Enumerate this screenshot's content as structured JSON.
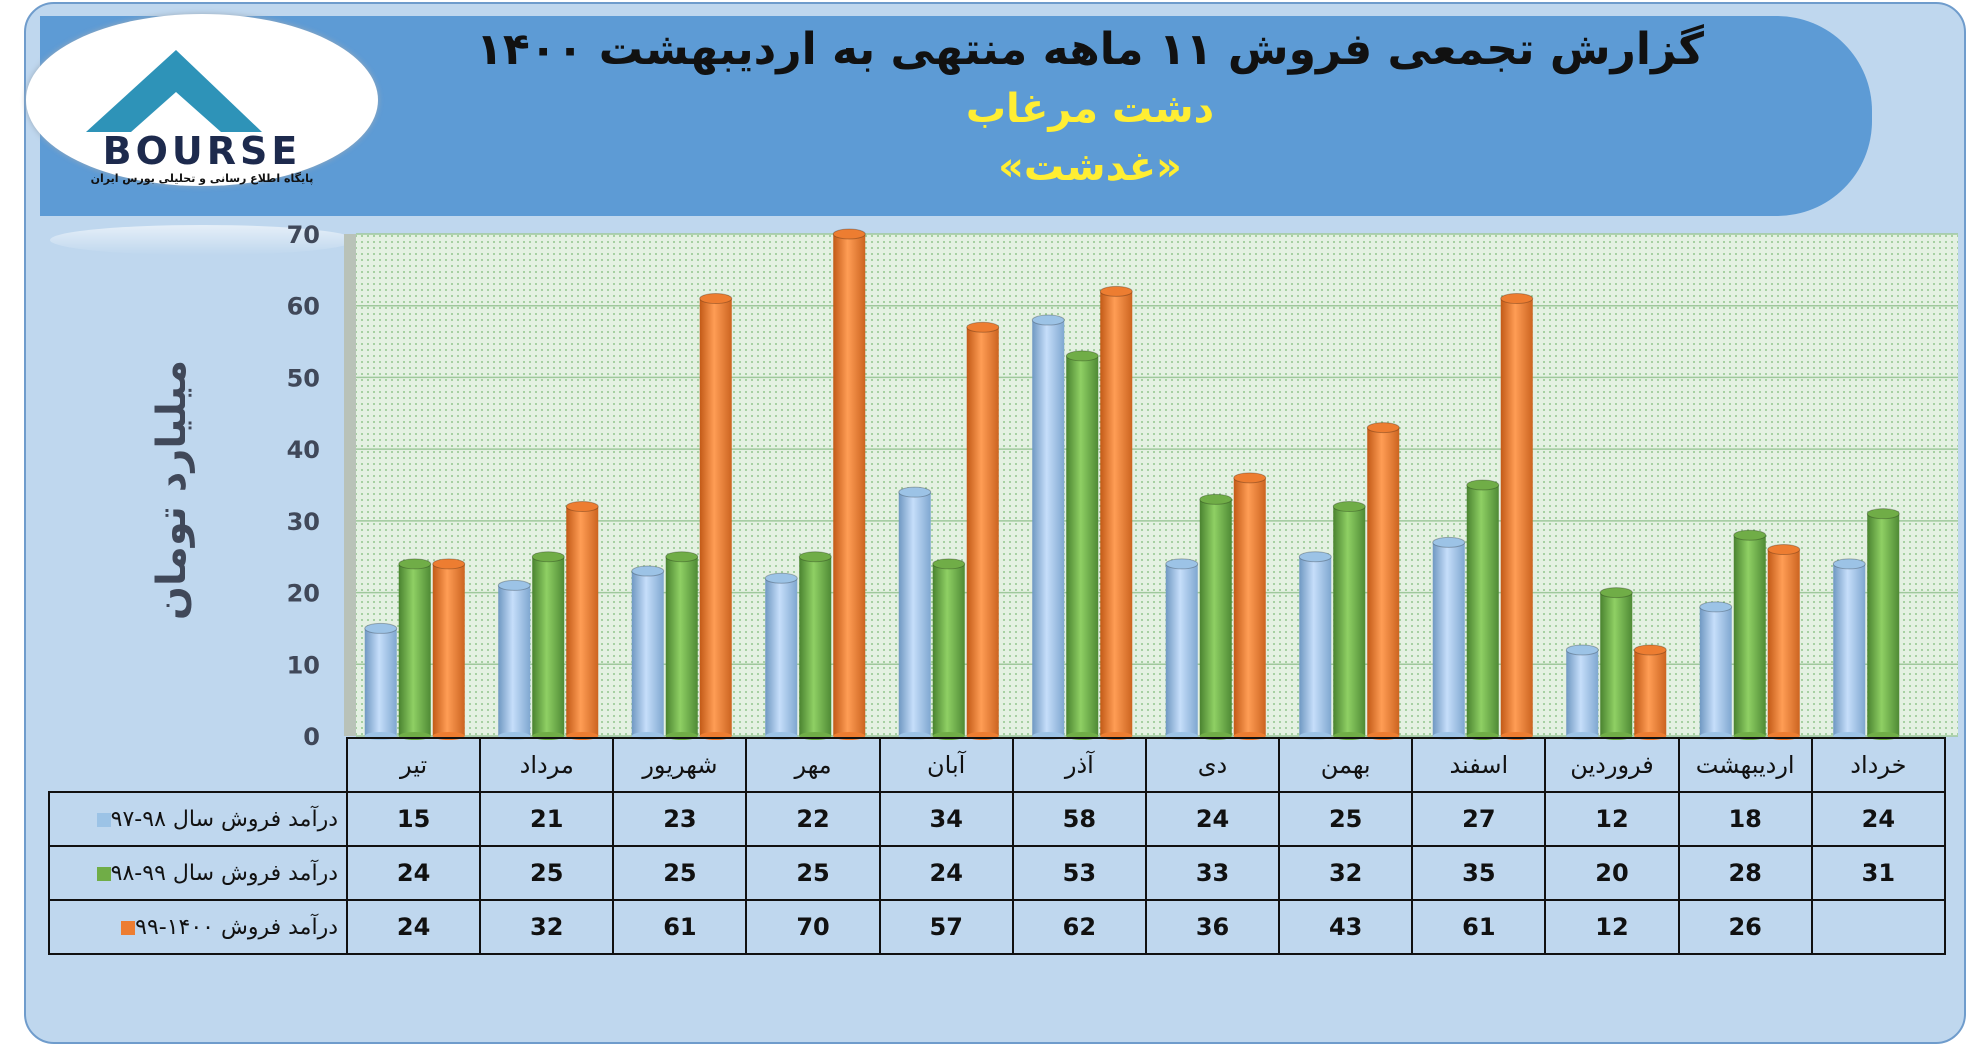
{
  "header": {
    "title": "گزارش تجمعی فروش ۱۱ ماهه منتهی به اردیبهشت ۱۴۰۰",
    "company": "دشت مرغاب",
    "symbol": "«غدشت»"
  },
  "logo": {
    "brand": "BOURSE",
    "tagline": "پایگاه اطلاع رسانی و تحلیلی بورس ایران"
  },
  "colors": {
    "series1": "#9cc3e6",
    "series2": "#70ad47",
    "series3": "#ed7d31",
    "banner": "#5d9bd5",
    "background": "#bfd7ee"
  },
  "chart_data": {
    "type": "bar",
    "ylabel": "میلیارد تومان",
    "ylim": [
      0,
      70
    ],
    "yticks": [
      0,
      10,
      20,
      30,
      40,
      50,
      60,
      70
    ],
    "grid": true,
    "legend": "table-left",
    "categories": [
      "تیر",
      "مرداد",
      "شهریور",
      "مهر",
      "آبان",
      "آذر",
      "دی",
      "بهمن",
      "اسفند",
      "فروردین",
      "اردیبهشت",
      "خرداد"
    ],
    "series": [
      {
        "name": "درآمد فروش سال ۹۸-۹۷",
        "values": [
          15,
          21,
          23,
          22,
          34,
          58,
          24,
          25,
          27,
          12,
          18,
          24
        ]
      },
      {
        "name": "درآمد فروش سال ۹۹-۹۸",
        "values": [
          24,
          25,
          25,
          25,
          24,
          53,
          33,
          32,
          35,
          20,
          28,
          31
        ]
      },
      {
        "name": "درآمد فروش ۱۴۰۰-۹۹",
        "values": [
          24,
          32,
          61,
          70,
          57,
          62,
          36,
          43,
          61,
          12,
          26,
          null
        ]
      }
    ]
  }
}
